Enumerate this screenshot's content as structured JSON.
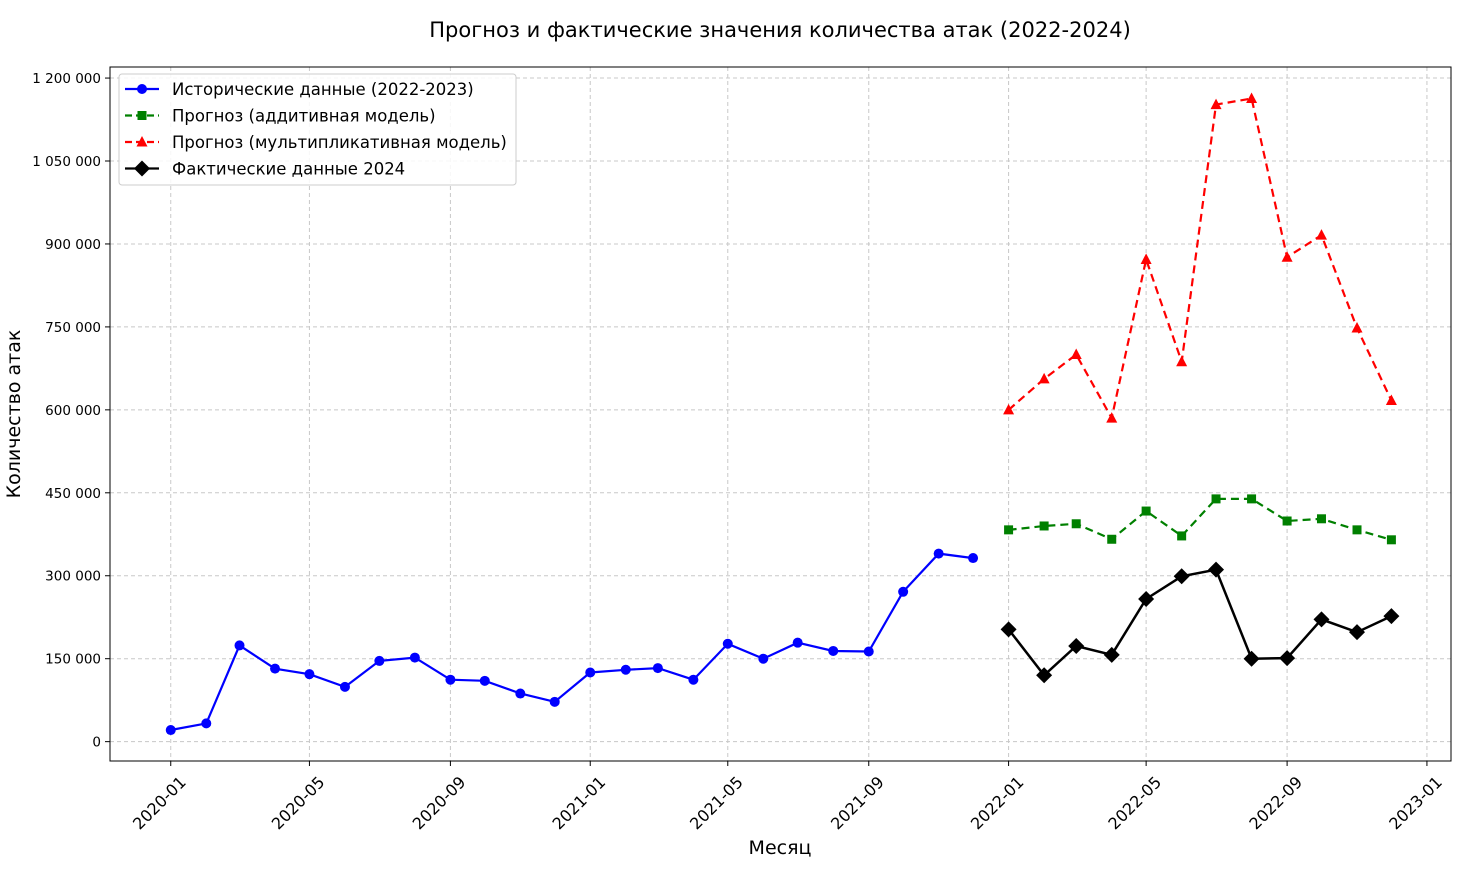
{
  "chart_data": {
    "type": "line",
    "title": "Прогноз и фактические значения количества атак (2022-2024)",
    "xlabel": "Месяц",
    "ylabel": "Количество атак",
    "ylim": [
      -35000,
      1220000
    ],
    "yticks": [
      0,
      150000,
      300000,
      450000,
      600000,
      750000,
      900000,
      1050000,
      1200000
    ],
    "ytick_labels": [
      "0",
      "150 000",
      "300 000",
      "450 000",
      "600 000",
      "750 000",
      "900 000",
      "1 050 000",
      "1 200 000"
    ],
    "xlim": [
      "2019-11-09",
      "2023-01-22"
    ],
    "xticks": [
      "2020-01",
      "2020-05",
      "2020-09",
      "2021-01",
      "2021-05",
      "2021-09",
      "2022-01",
      "2022-05",
      "2022-09",
      "2023-01"
    ],
    "grid": true,
    "legend_position": "top-left",
    "series": [
      {
        "name": "Исторические данные (2022-2023)",
        "color": "#0000ff",
        "linestyle": "solid",
        "marker": "circle",
        "x": [
          "2020-01",
          "2020-02",
          "2020-03",
          "2020-04",
          "2020-05",
          "2020-06",
          "2020-07",
          "2020-08",
          "2020-09",
          "2020-10",
          "2020-11",
          "2020-12",
          "2021-01",
          "2021-02",
          "2021-03",
          "2021-04",
          "2021-05",
          "2021-06",
          "2021-07",
          "2021-08",
          "2021-09",
          "2021-10",
          "2021-11",
          "2021-12"
        ],
        "values": [
          21000,
          33000,
          174000,
          132000,
          122000,
          99000,
          146000,
          152000,
          112000,
          110000,
          87000,
          72000,
          125000,
          130000,
          133000,
          112000,
          177000,
          150000,
          179000,
          164000,
          163000,
          271000,
          340000,
          332000
        ]
      },
      {
        "name": "Прогноз (аддитивная модель)",
        "color": "#008000",
        "linestyle": "dashed",
        "marker": "square",
        "x": [
          "2022-01",
          "2022-02",
          "2022-03",
          "2022-04",
          "2022-05",
          "2022-06",
          "2022-07",
          "2022-08",
          "2022-09",
          "2022-10",
          "2022-11",
          "2022-12"
        ],
        "values": [
          383000,
          390000,
          394000,
          366000,
          417000,
          372000,
          439000,
          439000,
          399000,
          403000,
          383000,
          365000
        ]
      },
      {
        "name": "Прогноз (мультипликативная модель)",
        "color": "#ff0000",
        "linestyle": "dashed",
        "marker": "triangle",
        "x": [
          "2022-01",
          "2022-02",
          "2022-03",
          "2022-04",
          "2022-05",
          "2022-06",
          "2022-07",
          "2022-08",
          "2022-09",
          "2022-10",
          "2022-11",
          "2022-12"
        ],
        "values": [
          600000,
          656000,
          700000,
          585000,
          872000,
          687000,
          1152000,
          1163000,
          876000,
          916000,
          748000,
          617000
        ]
      },
      {
        "name": "Фактические данные 2024",
        "color": "#000000",
        "linestyle": "solid",
        "marker": "diamond",
        "x": [
          "2022-01",
          "2022-02",
          "2022-03",
          "2022-04",
          "2022-05",
          "2022-06",
          "2022-07",
          "2022-08",
          "2022-09",
          "2022-10",
          "2022-11",
          "2022-12"
        ],
        "values": [
          203000,
          120000,
          173000,
          157000,
          258000,
          299000,
          311000,
          150000,
          151000,
          221000,
          198000,
          227000
        ]
      }
    ]
  }
}
